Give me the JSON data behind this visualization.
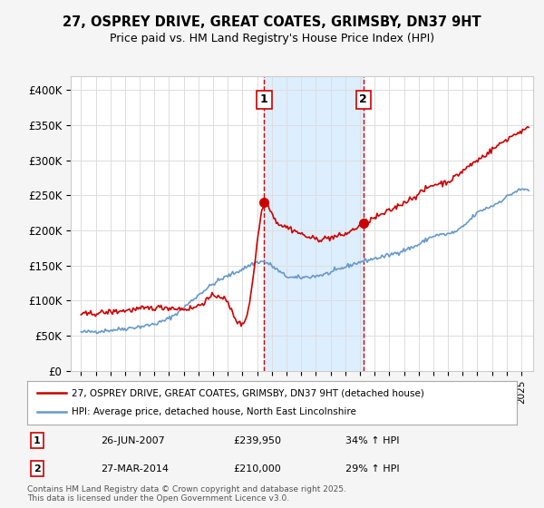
{
  "title": "27, OSPREY DRIVE, GREAT COATES, GRIMSBY, DN37 9HT",
  "subtitle": "Price paid vs. HM Land Registry's House Price Index (HPI)",
  "ylabel_ticks": [
    "£0",
    "£50K",
    "£100K",
    "£150K",
    "£200K",
    "£250K",
    "£300K",
    "£350K",
    "£400K"
  ],
  "ylim": [
    0,
    420000
  ],
  "xlim_start": 1995,
  "xlim_end": 2025.5,
  "marker1_x": 2007.48,
  "marker1_y": 239950,
  "marker1_label": "1",
  "marker1_date": "26-JUN-2007",
  "marker1_price": "£239,950",
  "marker1_hpi": "34% ↑ HPI",
  "marker2_x": 2014.23,
  "marker2_y": 210000,
  "marker2_label": "2",
  "marker2_date": "27-MAR-2014",
  "marker2_price": "£210,000",
  "marker2_hpi": "29% ↑ HPI",
  "red_line_color": "#cc0000",
  "blue_line_color": "#6699cc",
  "shaded_color": "#ddeeff",
  "marker_line_color": "#cc0000",
  "legend1": "27, OSPREY DRIVE, GREAT COATES, GRIMSBY, DN37 9HT (detached house)",
  "legend2": "HPI: Average price, detached house, North East Lincolnshire",
  "footer": "Contains HM Land Registry data © Crown copyright and database right 2025.\nThis data is licensed under the Open Government Licence v3.0.",
  "background_color": "#f5f5f5",
  "plot_bg_color": "#ffffff"
}
